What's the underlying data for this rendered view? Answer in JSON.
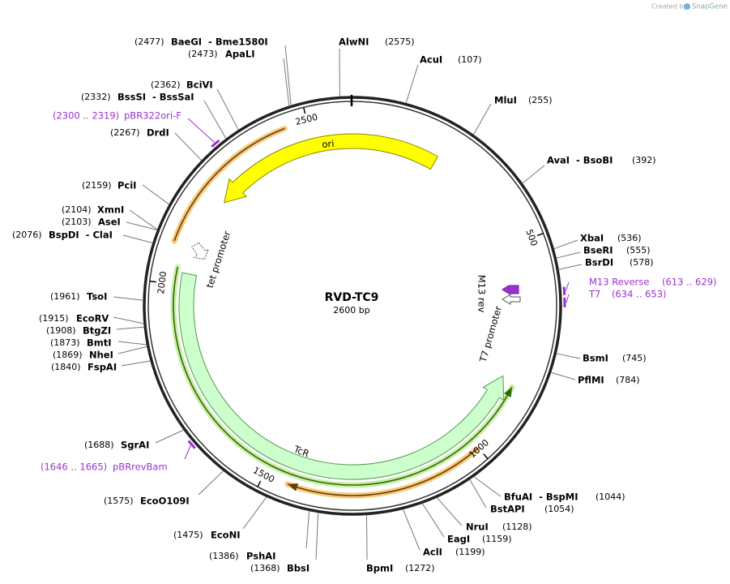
{
  "header": {
    "created_by": "Created by",
    "brand": "SnapGene"
  },
  "plasmid": {
    "name": "RVD-TC9",
    "length": {
      "value": 2600,
      "label": "2600 bp"
    }
  },
  "ticks": [
    500,
    1000,
    1500,
    2000,
    2500
  ],
  "enzymes": [
    {
      "name": "AlwNI",
      "site": {
        "value": 2575,
        "label": "(2575)"
      }
    },
    {
      "name": "AcuI",
      "site": {
        "value": 107,
        "label": "(107)"
      }
    },
    {
      "name": "MluI",
      "site": {
        "value": 255,
        "label": "(255)"
      }
    },
    {
      "name": "AvaI  - BsoBI",
      "site": {
        "value": 392,
        "label": "(392)"
      }
    },
    {
      "name": "XbaI",
      "site": {
        "value": 536,
        "label": "(536)"
      }
    },
    {
      "name": "BseRI",
      "site": {
        "value": 555,
        "label": "(555)"
      }
    },
    {
      "name": "BsrDI",
      "site": {
        "value": 578,
        "label": "(578)"
      }
    },
    {
      "name": "BsmI",
      "site": {
        "value": 745,
        "label": "(745)"
      }
    },
    {
      "name": "PflMI",
      "site": {
        "value": 784,
        "label": "(784)"
      }
    },
    {
      "name": "BfuAI  - BspMI",
      "site": {
        "value": 1044,
        "label": "(1044)"
      }
    },
    {
      "name": "BstAPI",
      "site": {
        "value": 1054,
        "label": "(1054)"
      }
    },
    {
      "name": "NruI",
      "site": {
        "value": 1128,
        "label": "(1128)"
      }
    },
    {
      "name": "EagI",
      "site": {
        "value": 1159,
        "label": "(1159)"
      }
    },
    {
      "name": "AclI",
      "site": {
        "value": 1199,
        "label": "(1199)"
      }
    },
    {
      "name": "BpmI",
      "site": {
        "value": 1272,
        "label": "(1272)"
      }
    },
    {
      "name": "BbsI",
      "site": {
        "value": 1368,
        "label": "(1368)"
      }
    },
    {
      "name": "PshAI",
      "site": {
        "value": 1386,
        "label": "(1386)"
      }
    },
    {
      "name": "EcoNI",
      "site": {
        "value": 1475,
        "label": "(1475)"
      }
    },
    {
      "name": "EcoO109I",
      "site": {
        "value": 1575,
        "label": "(1575)"
      }
    },
    {
      "name": "SgrAI",
      "site": {
        "value": 1688,
        "label": "(1688)"
      }
    },
    {
      "name": "FspAI",
      "site": {
        "value": 1840,
        "label": "(1840)"
      }
    },
    {
      "name": "NheI",
      "site": {
        "value": 1869,
        "label": "(1869)"
      }
    },
    {
      "name": "BmtI",
      "site": {
        "value": 1873,
        "label": "(1873)"
      }
    },
    {
      "name": "BtgZI",
      "site": {
        "value": 1908,
        "label": "(1908)"
      }
    },
    {
      "name": "EcoRV",
      "site": {
        "value": 1915,
        "label": "(1915)"
      }
    },
    {
      "name": "TsoI",
      "site": {
        "value": 1961,
        "label": "(1961)"
      }
    },
    {
      "name": "BspDI  - ClaI",
      "site": {
        "value": 2076,
        "label": "(2076)"
      }
    },
    {
      "name": "AseI",
      "site": {
        "value": 2103,
        "label": "(2103)"
      }
    },
    {
      "name": "XmnI",
      "site": {
        "value": 2104,
        "label": "(2104)"
      }
    },
    {
      "name": "PciI",
      "site": {
        "value": 2159,
        "label": "(2159)"
      }
    },
    {
      "name": "DrdI",
      "site": {
        "value": 2267,
        "label": "(2267)"
      }
    },
    {
      "name": "BssSI  - BssSaI",
      "site": {
        "value": 2332,
        "label": "(2332)"
      }
    },
    {
      "name": "BciVI",
      "site": {
        "value": 2362,
        "label": "(2362)"
      }
    },
    {
      "name": "ApaLI",
      "site": {
        "value": 2473,
        "label": "(2473)"
      }
    },
    {
      "name": "BaeGI  - Bme1580I",
      "site": {
        "value": 2477,
        "label": "(2477)"
      }
    }
  ],
  "primers": [
    {
      "name": "pBR322ori-F",
      "range": {
        "start": 2300,
        "end": 2319,
        "label": "(2300 .. 2319)"
      }
    },
    {
      "name": "M13 Reverse",
      "range": {
        "start": 613,
        "end": 629,
        "label": "(613 .. 629)"
      }
    },
    {
      "name": "T7",
      "range": {
        "start": 634,
        "end": 653,
        "label": "(634 .. 653)"
      }
    },
    {
      "name": "pBRrevBam",
      "range": {
        "start": 1646,
        "end": 1665,
        "label": "(1646 .. 1665)"
      }
    }
  ],
  "features": [
    {
      "name": "ori"
    },
    {
      "name": "TcR"
    },
    {
      "name": "tet promoter"
    },
    {
      "name": "T7 promoter"
    },
    {
      "name": "M13 rev"
    }
  ]
}
